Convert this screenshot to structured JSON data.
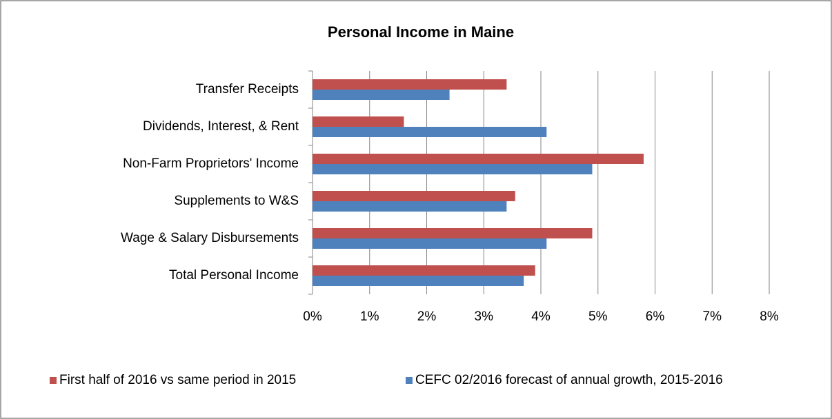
{
  "chart_data": {
    "type": "hbar",
    "title": "Personal Income in Maine",
    "categories": [
      "Transfer Receipts",
      "Dividends, Interest, & Rent",
      "Non-Farm Proprietors' Income",
      "Supplements to W&S",
      "Wage & Salary Disbursements",
      "Total Personal Income"
    ],
    "series": [
      {
        "name": "First half of 2016 vs same period in 2015",
        "color": "#c0504d",
        "values": [
          3.4,
          1.6,
          5.8,
          3.55,
          4.9,
          3.9
        ]
      },
      {
        "name": "CEFC 02/2016 forecast of annual growth, 2015-2016",
        "color": "#4f81bd",
        "values": [
          2.4,
          4.1,
          4.9,
          3.4,
          4.1,
          3.7
        ]
      }
    ],
    "xlim": [
      0,
      8
    ],
    "xticks": [
      {
        "value": 0,
        "label": "0%"
      },
      {
        "value": 1,
        "label": "1%"
      },
      {
        "value": 2,
        "label": "2%"
      },
      {
        "value": 3,
        "label": "3%"
      },
      {
        "value": 4,
        "label": "4%"
      },
      {
        "value": 5,
        "label": "5%"
      },
      {
        "value": 6,
        "label": "6%"
      },
      {
        "value": 7,
        "label": "7%"
      },
      {
        "value": 8,
        "label": "8%"
      }
    ],
    "grid": true,
    "legend": "bottom"
  }
}
